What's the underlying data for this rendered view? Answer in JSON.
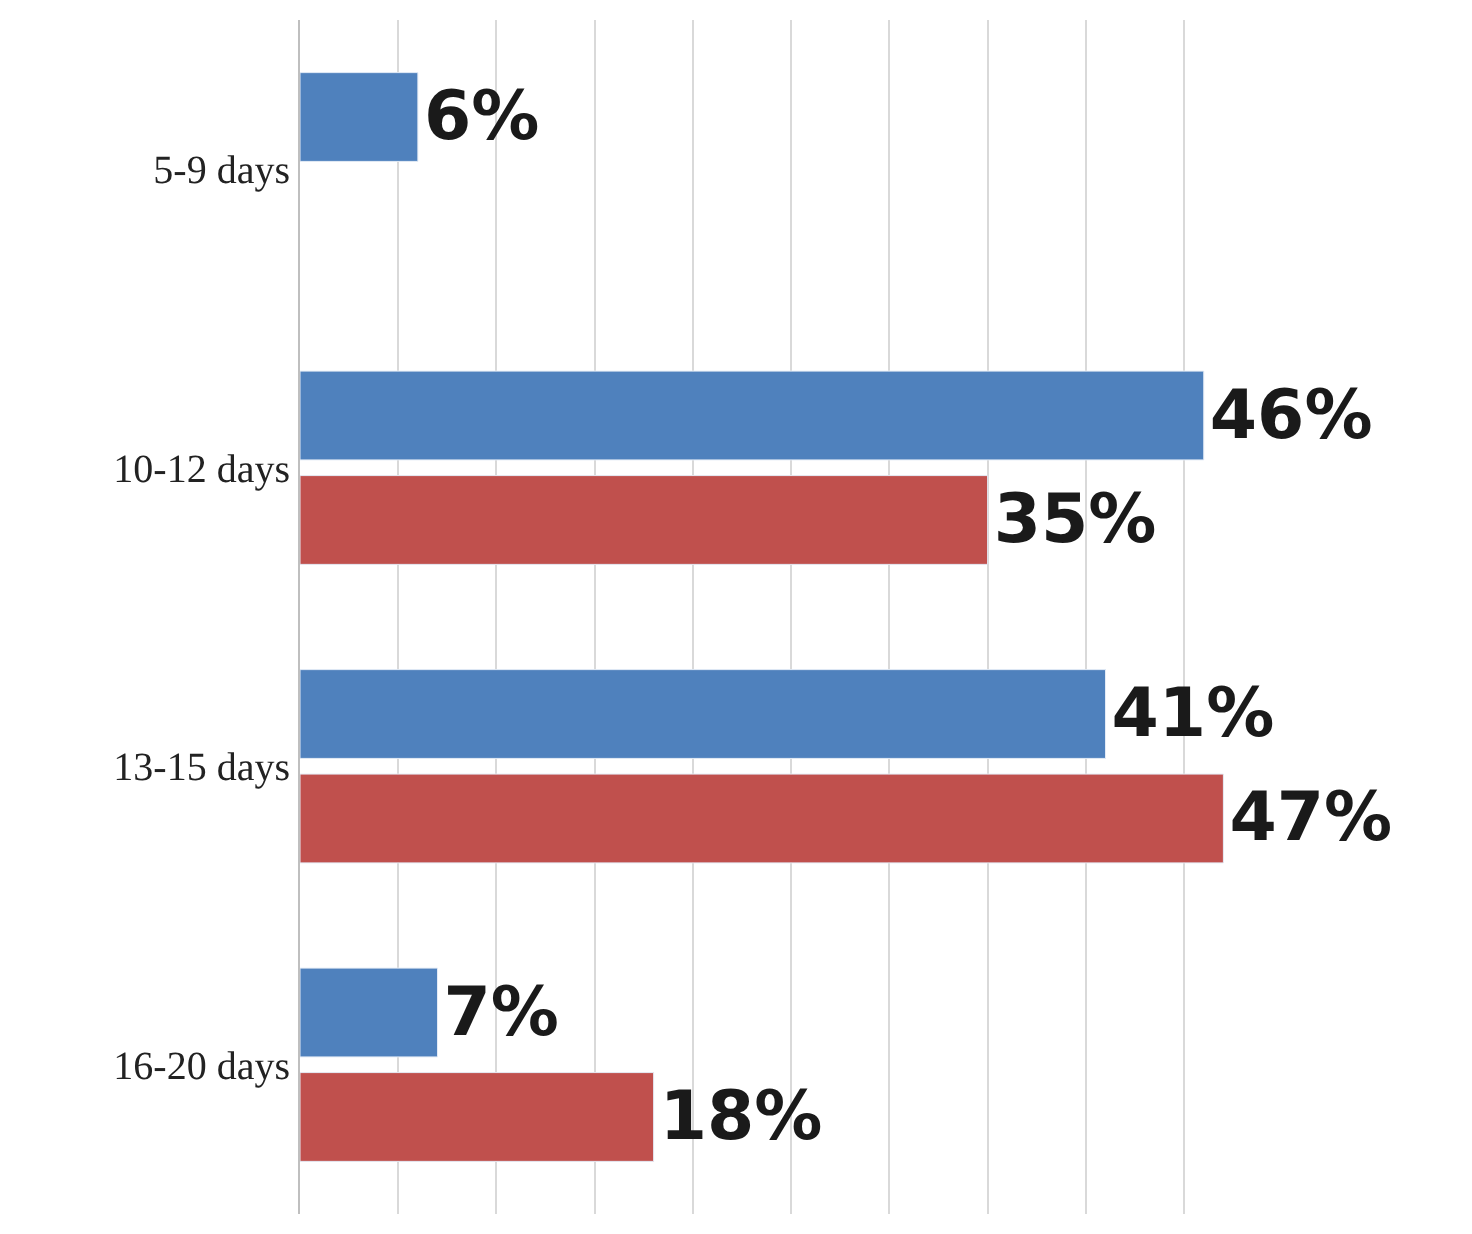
{
  "chart_data": {
    "type": "bar",
    "orientation": "horizontal",
    "categories": [
      "5-9 days",
      "10-12 days",
      "13-15 days",
      "16-20 days"
    ],
    "series": [
      {
        "color": "#4f81bd",
        "values": [
          6,
          46,
          41,
          7
        ],
        "value_labels": [
          "6%",
          "46%",
          "41%",
          "7%"
        ]
      },
      {
        "color": "#c0504d",
        "values": [
          null,
          35,
          47,
          18
        ],
        "value_labels": [
          null,
          "35%",
          "47%",
          "18%"
        ]
      }
    ],
    "grid": "x",
    "tick_labels": "y"
  }
}
